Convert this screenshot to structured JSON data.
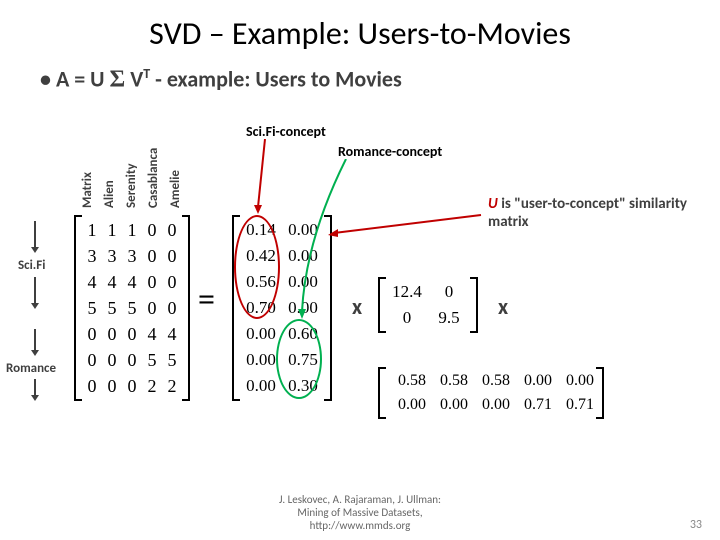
{
  "title": "SVD – Example: Users-to-Movies",
  "bullet": {
    "prefix": "• ",
    "a": "A = U ",
    "sigma": "Σ",
    "vt_v": " V",
    "vt_t": "T",
    "rest": " - example: Users to Movies"
  },
  "movie_labels": [
    "Matrix",
    "Alien",
    "Serenity",
    "Casablanca",
    "Amelie"
  ],
  "group_labels": {
    "scifi": "Sci.Fi",
    "romance": "Romance"
  },
  "A": {
    "rows": [
      [
        "1",
        "1",
        "1",
        "0",
        "0"
      ],
      [
        "3",
        "3",
        "3",
        "0",
        "0"
      ],
      [
        "4",
        "4",
        "4",
        "0",
        "0"
      ],
      [
        "5",
        "5",
        "5",
        "0",
        "0"
      ],
      [
        "0",
        "0",
        "0",
        "4",
        "4"
      ],
      [
        "0",
        "0",
        "0",
        "5",
        "5"
      ],
      [
        "0",
        "0",
        "0",
        "2",
        "2"
      ]
    ]
  },
  "eq": "=",
  "U": {
    "rows": [
      [
        "0.14",
        "0.00"
      ],
      [
        "0.42",
        "0.00"
      ],
      [
        "0.56",
        "0.00"
      ],
      [
        "0.70",
        "0.00"
      ],
      [
        "0.00",
        "0.60"
      ],
      [
        "0.00",
        "0.75"
      ],
      [
        "0.00",
        "0.30"
      ]
    ],
    "ell_scifi_color": "#c00000",
    "ell_rom_color": "#00b050"
  },
  "concepts": {
    "scifi": "Sci.Fi-concept",
    "romance": "Romance-concept",
    "scifi_color": "#c00000",
    "romance_color": "#00b050"
  },
  "note": {
    "u": "U",
    "rest": " is \"user-to-concept\" similarity matrix",
    "u_color": "#c00000"
  },
  "xs": {
    "x1": "x",
    "x2": "x"
  },
  "Sigma": {
    "rows": [
      [
        "12.4",
        "0"
      ],
      [
        "0",
        "9.5"
      ]
    ]
  },
  "VT": {
    "rows": [
      [
        "0.58",
        "0.58",
        "0.58",
        "0.00",
        "0.00"
      ],
      [
        "0.00",
        "0.00",
        "0.00",
        "0.71",
        "0.71"
      ]
    ]
  },
  "cite": {
    "l1": "J. Leskovec, A. Rajaraman, J. Ullman:",
    "l2": "Mining of Massive Datasets,",
    "l3": "http://www.mmds.org"
  },
  "pagenum": "33"
}
